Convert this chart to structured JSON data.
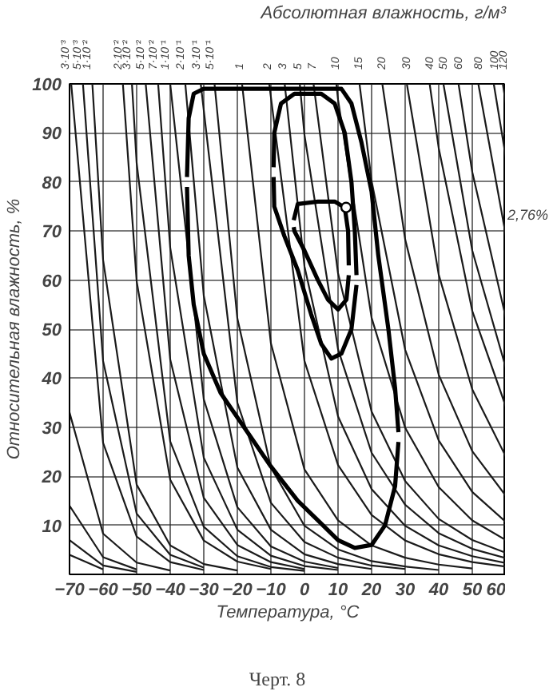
{
  "chart_data": {
    "type": "line",
    "title": "Абсолютная влажность, г/м³",
    "xlabel": "Температура, °C",
    "ylabel": "Относительная влажность, %",
    "xlim": [
      -70,
      60
    ],
    "ylim": [
      0,
      100
    ],
    "xticks": [
      -70,
      -60,
      -50,
      -40,
      -30,
      -20,
      -10,
      0,
      10,
      20,
      30,
      40,
      50,
      60
    ],
    "yticks": [
      10,
      20,
      30,
      40,
      50,
      60,
      70,
      80,
      90,
      100
    ],
    "grid": true,
    "annotations": [
      "2,76%",
      "Черт. 8"
    ],
    "series": [
      {
        "color": "#1a1a1a",
        "x": [
          -70,
          -60,
          -50,
          -40
        ],
        "values": [
          33,
          8.3,
          2.4,
          0.8
        ]
      },
      {
        "color": "#1a1a1a",
        "x": [
          -70,
          -60,
          -50
        ],
        "values": [
          14,
          3.5,
          1.0
        ]
      },
      {
        "color": "#1a1a1a",
        "x": [
          -70,
          -60,
          -50
        ],
        "values": [
          7,
          1.8,
          0.5
        ]
      },
      {
        "color": "#1a1a1a",
        "x": [
          -70,
          -60
        ],
        "values": [
          4,
          1.0
        ]
      },
      {
        "name": "3·10⁻³",
        "color": "#1a1a1a",
        "x": [
          -69.5,
          -60,
          -50,
          -40,
          -30
        ],
        "values": [
          100,
          26.8,
          7.7,
          2.5,
          0.9
        ]
      },
      {
        "name": "5·10⁻³",
        "color": "#1a1a1a",
        "x": [
          -66,
          -60,
          -50,
          -40,
          -30
        ],
        "values": [
          100,
          43.5,
          12.4,
          4.0,
          1.4
        ]
      },
      {
        "name": "1·10⁻²",
        "color": "#1a1a1a",
        "x": [
          -63.2,
          -60,
          -50,
          -40,
          -30,
          -20
        ],
        "values": [
          100,
          64.1,
          18.3,
          5.9,
          2.1,
          0.8
        ]
      },
      {
        "name": "2·10⁻²",
        "color": "#1a1a1a",
        "x": [
          -54.1,
          -50,
          -40,
          -30,
          -20,
          -10
        ],
        "values": [
          100,
          59.8,
          19.3,
          6.9,
          2.6,
          1.1
        ]
      },
      {
        "name": "3·10⁻²",
        "color": "#1a1a1a",
        "x": [
          -51.4,
          -50,
          -40,
          -30,
          -20,
          -10,
          0
        ],
        "values": [
          100,
          83.9,
          27.1,
          9.7,
          3.7,
          1.5,
          0.7
        ]
      },
      {
        "name": "5·10⁻²",
        "color": "#1a1a1a",
        "x": [
          -47.3,
          -40,
          -30,
          -20,
          -10,
          0
        ],
        "values": [
          100,
          43.8,
          15.6,
          6.0,
          2.5,
          1.1
        ]
      },
      {
        "name": "7·10⁻²",
        "color": "#1a1a1a",
        "x": [
          -43.6,
          -40,
          -30,
          -20,
          -10,
          0,
          10
        ],
        "values": [
          100,
          66.6,
          23.8,
          9.1,
          3.8,
          1.7,
          0.9
        ]
      },
      {
        "name": "1·10⁻¹",
        "color": "#1a1a1a",
        "x": [
          -40,
          -30,
          -20,
          -10,
          0,
          10
        ],
        "values": [
          100,
          35.7,
          13.7,
          5.7,
          2.6,
          1.3
        ]
      },
      {
        "name": "2·10⁻¹",
        "color": "#1a1a1a",
        "x": [
          -35.5,
          -30,
          -20,
          -10,
          0,
          10,
          20
        ],
        "values": [
          100,
          56.8,
          21.8,
          9.1,
          4.1,
          2.1,
          1.1
        ]
      },
      {
        "name": "3·10⁻¹",
        "color": "#1a1a1a",
        "x": [
          -30.9,
          -20,
          -10,
          0,
          10,
          20,
          30
        ],
        "values": [
          100,
          35.0,
          14.6,
          6.6,
          3.4,
          1.8,
          1.1
        ]
      },
      {
        "name": "5·10⁻¹",
        "color": "#1a1a1a",
        "x": [
          -26.8,
          -20,
          -10,
          0,
          10,
          20,
          30,
          40
        ],
        "values": [
          100,
          52.2,
          21.8,
          9.9,
          5.1,
          2.7,
          1.6,
          0.9
        ]
      },
      {
        "name": "1",
        "color": "#1a1a1a",
        "x": [
          -18.6,
          -10,
          0,
          10,
          20,
          30,
          40,
          50
        ],
        "values": [
          100,
          47.1,
          21.4,
          11.0,
          5.9,
          3.4,
          2.0,
          1.2
        ]
      },
      {
        "name": "2",
        "color": "#1a1a1a",
        "x": [
          -10.5,
          0,
          10,
          20,
          30,
          40,
          50,
          60
        ],
        "values": [
          100,
          43.5,
          22.3,
          12.1,
          6.9,
          4.1,
          2.5,
          1.6
        ]
      },
      {
        "name": "3",
        "color": "#1a1a1a",
        "x": [
          -5.9,
          0,
          10,
          20,
          30,
          40,
          50,
          60
        ],
        "values": [
          100,
          62.8,
          32.2,
          17.4,
          9.9,
          5.9,
          3.7,
          2.3
        ]
      },
      {
        "name": "5",
        "color": "#1a1a1a",
        "x": [
          -1.4,
          0,
          10,
          20,
          30,
          40,
          50,
          60
        ],
        "values": [
          100,
          89.6,
          45.9,
          24.8,
          14.2,
          8.4,
          5.2,
          3.3
        ]
      },
      {
        "name": "7",
        "color": "#1a1a1a",
        "x": [
          2.7,
          10,
          20,
          30,
          40,
          50,
          60
        ],
        "values": [
          100,
          61.4,
          33.2,
          19.0,
          11.3,
          7.0,
          4.4
        ]
      },
      {
        "name": "10",
        "color": "#1a1a1a",
        "x": [
          9.5,
          10,
          20,
          30,
          40,
          50,
          60
        ],
        "values": [
          100,
          96.8,
          52.3,
          29.9,
          17.8,
          11.0,
          7.0
        ]
      },
      {
        "name": "15",
        "color": "#1a1a1a",
        "x": [
          16.4,
          20,
          30,
          40,
          50,
          60
        ],
        "values": [
          100,
          80.2,
          45.8,
          27.3,
          16.8,
          10.7
        ]
      },
      {
        "name": "20",
        "color": "#1a1a1a",
        "x": [
          23.2,
          30,
          40,
          50,
          60
        ],
        "values": [
          100,
          68.3,
          40.7,
          25.1,
          16.0
        ]
      },
      {
        "name": "30",
        "color": "#1a1a1a",
        "x": [
          30.5,
          40,
          50,
          60
        ],
        "values": [
          100,
          61.1,
          37.7,
          24.0
        ]
      },
      {
        "name": "40",
        "color": "#1a1a1a",
        "x": [
          37.3,
          40,
          50,
          60
        ],
        "values": [
          100,
          86.9,
          53.7,
          34.2
        ]
      },
      {
        "name": "50",
        "color": "#1a1a1a",
        "x": [
          41.4,
          50,
          60
        ],
        "values": [
          100,
          66.0,
          42.1
        ]
      },
      {
        "name": "60",
        "color": "#1a1a1a",
        "x": [
          45.9,
          50,
          60
        ],
        "values": [
          100,
          82.0,
          52.3
        ]
      },
      {
        "name": "80",
        "color": "#1a1a1a",
        "x": [
          51.8,
          60
        ],
        "values": [
          100,
          69.1
        ]
      },
      {
        "name": "100",
        "color": "#1a1a1a",
        "x": [
          56.4,
          60
        ],
        "values": [
          100,
          85.0
        ]
      },
      {
        "name": "120",
        "color": "#1a1a1a",
        "x": [
          59.1,
          60
        ],
        "values": [
          100,
          96.0
        ]
      },
      {
        "color": "#000000",
        "x": [
          -35,
          -34.5,
          -33,
          -30,
          0,
          11,
          14,
          17,
          20,
          22,
          25,
          27,
          28
        ],
        "values": [
          81,
          93,
          98,
          99,
          99,
          99,
          96,
          88,
          78,
          65,
          50,
          38,
          29
        ]
      },
      {
        "color": "#000000",
        "x": [
          -35,
          -34.5,
          -33,
          -30,
          -25,
          -18,
          -10,
          -2,
          4,
          10,
          15,
          20,
          24,
          27,
          28
        ],
        "values": [
          79,
          65,
          55,
          45,
          37,
          30,
          22,
          15,
          11,
          7,
          5.4,
          6,
          10,
          18,
          27
        ]
      },
      {
        "color": "#000000",
        "x": [
          -9.2,
          -9,
          -7,
          -3,
          5,
          9,
          12,
          14,
          15,
          15.5
        ],
        "values": [
          83,
          90,
          96,
          98,
          98,
          96,
          90,
          80,
          70,
          61
        ]
      },
      {
        "color": "#000000",
        "x": [
          -9.2,
          -9,
          -6,
          -2,
          2,
          5,
          8,
          11,
          14,
          15.5
        ],
        "values": [
          81,
          75,
          69,
          62,
          53,
          47,
          44,
          45,
          50,
          59
        ]
      },
      {
        "color": "#000000",
        "x": [
          -3.2,
          -2,
          4,
          9,
          12,
          13,
          13.2
        ],
        "values": [
          72.2,
          75.5,
          76,
          76,
          74.8,
          70,
          63
        ]
      },
      {
        "color": "#000000",
        "x": [
          -3.2,
          -3,
          0,
          4,
          7,
          10,
          12.5,
          13.2
        ],
        "values": [
          70.8,
          70,
          66,
          60,
          56,
          54,
          56,
          61
        ]
      },
      {
        "type": "scatter",
        "marker": "circle",
        "color": "#000000",
        "x": [
          12.4
        ],
        "values": [
          74.8
        ]
      }
    ]
  }
}
